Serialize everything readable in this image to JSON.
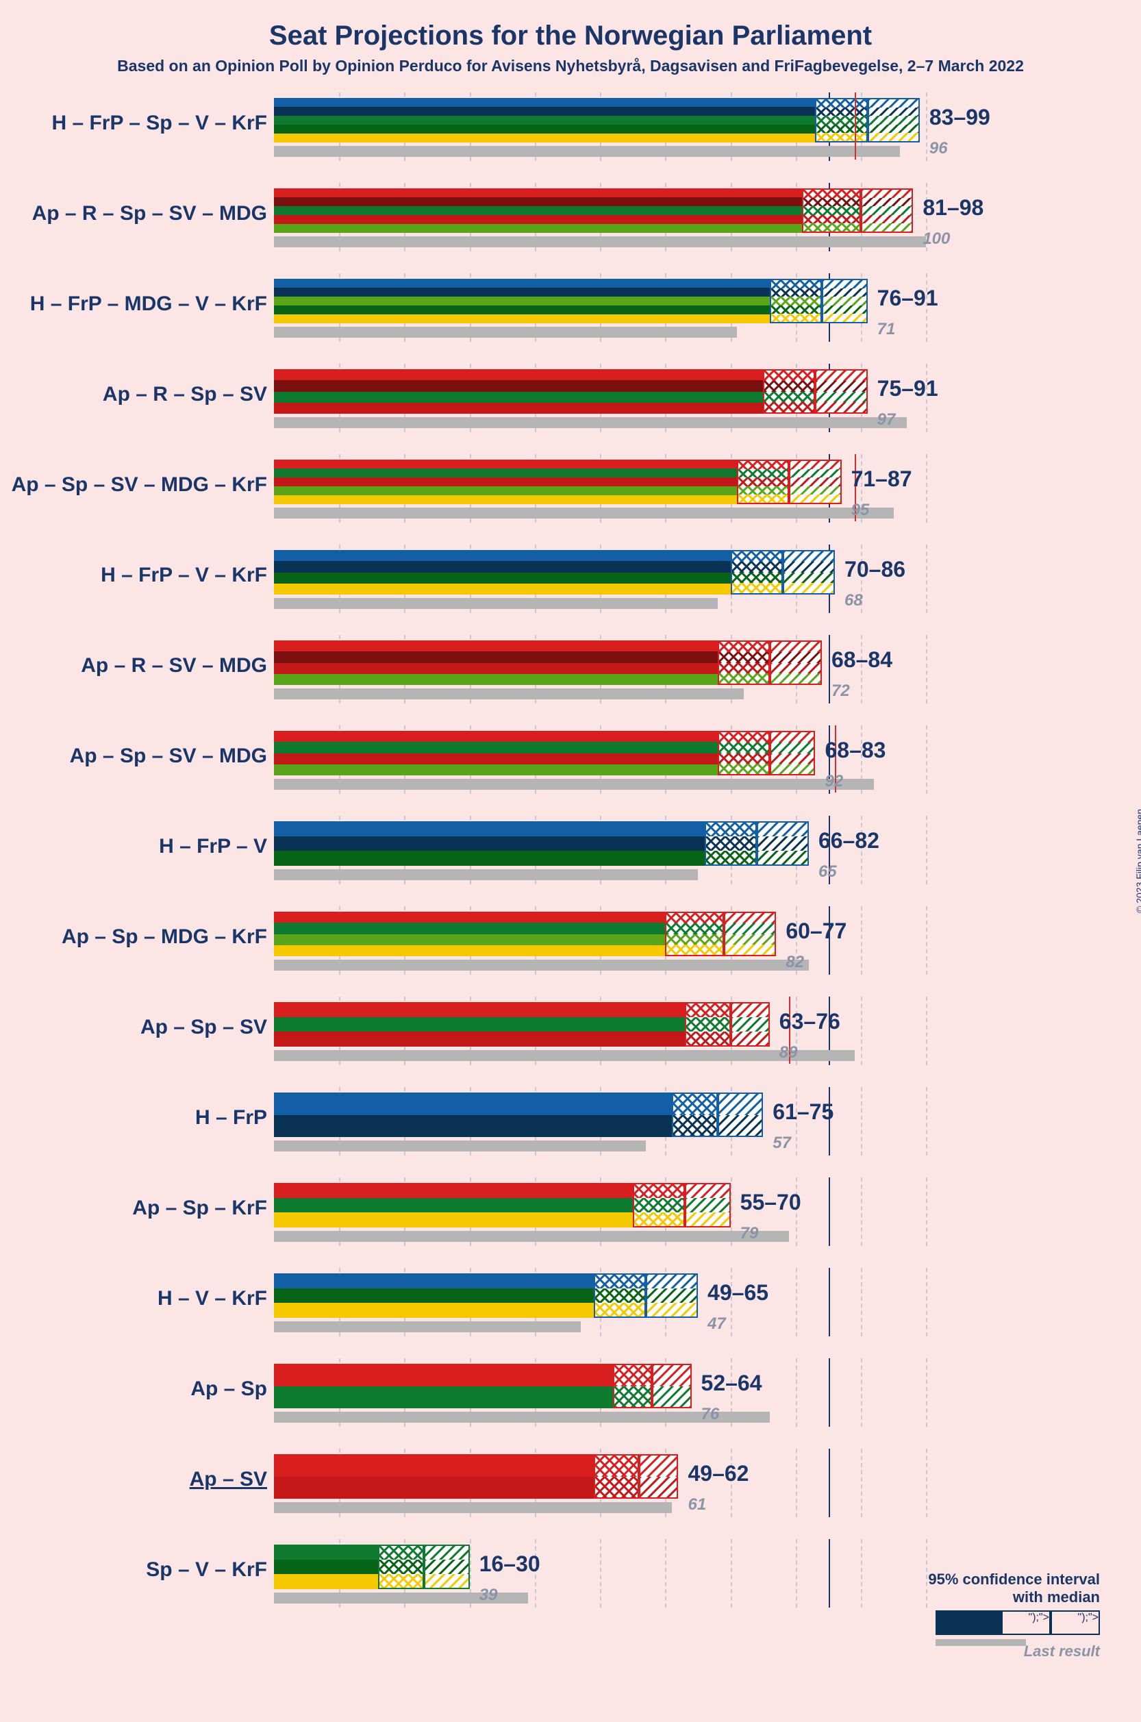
{
  "title": "Seat Projections for the Norwegian Parliament",
  "title_fontsize": 40,
  "subtitle": "Based on an Opinion Poll by Opinion Perduco for Avisens Nyhetsbyrå, Dagsavisen and FriFagbevegelse, 2–7 March 2022",
  "subtitle_fontsize": 23,
  "label_fontsize": 30,
  "range_fontsize": 32,
  "last_fontsize": 24,
  "copyright": "© 2023 Filip van Laenen",
  "scale": {
    "min": 0,
    "max": 105,
    "tick_step": 10,
    "majority_line": 85
  },
  "party_colors": {
    "H": "#135fa6",
    "FrP": "#0a3254",
    "Sp": "#0e7a2f",
    "V": "#076315",
    "KrF": "#f5c800",
    "Ap": "#d81e1e",
    "R": "#7a0f0f",
    "SV": "#c41818",
    "MDG": "#5aa41a"
  },
  "legend": {
    "line1": "95% confidence interval",
    "line2": "with median",
    "last": "Last result",
    "demo_color": "#0a3254"
  },
  "coalitions": [
    {
      "label": "H – FrP – Sp – V – KrF",
      "parties": [
        "H",
        "FrP",
        "Sp",
        "V",
        "KrF"
      ],
      "low": 83,
      "median": 91,
      "high": 99,
      "last": 96,
      "red_tick": 89
    },
    {
      "label": "Ap – R – Sp – SV – MDG",
      "parties": [
        "Ap",
        "R",
        "Sp",
        "SV",
        "MDG"
      ],
      "low": 81,
      "median": 90,
      "high": 98,
      "last": 100
    },
    {
      "label": "H – FrP – MDG – V – KrF",
      "parties": [
        "H",
        "FrP",
        "MDG",
        "V",
        "KrF"
      ],
      "low": 76,
      "median": 84,
      "high": 91,
      "last": 71
    },
    {
      "label": "Ap – R – Sp – SV",
      "parties": [
        "Ap",
        "R",
        "Sp",
        "SV"
      ],
      "low": 75,
      "median": 83,
      "high": 91,
      "last": 97
    },
    {
      "label": "Ap – Sp – SV – MDG – KrF",
      "parties": [
        "Ap",
        "Sp",
        "SV",
        "MDG",
        "KrF"
      ],
      "low": 71,
      "median": 79,
      "high": 87,
      "last": 95,
      "red_tick": 89
    },
    {
      "label": "H – FrP – V – KrF",
      "parties": [
        "H",
        "FrP",
        "V",
        "KrF"
      ],
      "low": 70,
      "median": 78,
      "high": 86,
      "last": 68
    },
    {
      "label": "Ap – R – SV – MDG",
      "parties": [
        "Ap",
        "R",
        "SV",
        "MDG"
      ],
      "low": 68,
      "median": 76,
      "high": 84,
      "last": 72
    },
    {
      "label": "Ap – Sp – SV – MDG",
      "parties": [
        "Ap",
        "Sp",
        "SV",
        "MDG"
      ],
      "low": 68,
      "median": 76,
      "high": 83,
      "last": 92,
      "red_tick": 86
    },
    {
      "label": "H – FrP – V",
      "parties": [
        "H",
        "FrP",
        "V"
      ],
      "low": 66,
      "median": 74,
      "high": 82,
      "last": 65
    },
    {
      "label": "Ap – Sp – MDG – KrF",
      "parties": [
        "Ap",
        "Sp",
        "MDG",
        "KrF"
      ],
      "low": 60,
      "median": 69,
      "high": 77,
      "last": 82
    },
    {
      "label": "Ap – Sp – SV",
      "parties": [
        "Ap",
        "Sp",
        "SV"
      ],
      "low": 63,
      "median": 70,
      "high": 76,
      "last": 89,
      "red_tick": 79
    },
    {
      "label": "H – FrP",
      "parties": [
        "H",
        "FrP"
      ],
      "low": 61,
      "median": 68,
      "high": 75,
      "last": 57
    },
    {
      "label": "Ap – Sp – KrF",
      "parties": [
        "Ap",
        "Sp",
        "KrF"
      ],
      "low": 55,
      "median": 63,
      "high": 70,
      "last": 79
    },
    {
      "label": "H – V – KrF",
      "parties": [
        "H",
        "V",
        "KrF"
      ],
      "low": 49,
      "median": 57,
      "high": 65,
      "last": 47
    },
    {
      "label": "Ap – Sp",
      "parties": [
        "Ap",
        "Sp"
      ],
      "low": 52,
      "median": 58,
      "high": 64,
      "last": 76
    },
    {
      "label": "Ap – SV",
      "parties": [
        "Ap",
        "SV"
      ],
      "low": 49,
      "median": 56,
      "high": 62,
      "last": 61,
      "underline": true
    },
    {
      "label": "Sp – V – KrF",
      "parties": [
        "Sp",
        "V",
        "KrF"
      ],
      "low": 16,
      "median": 23,
      "high": 30,
      "last": 39
    }
  ]
}
